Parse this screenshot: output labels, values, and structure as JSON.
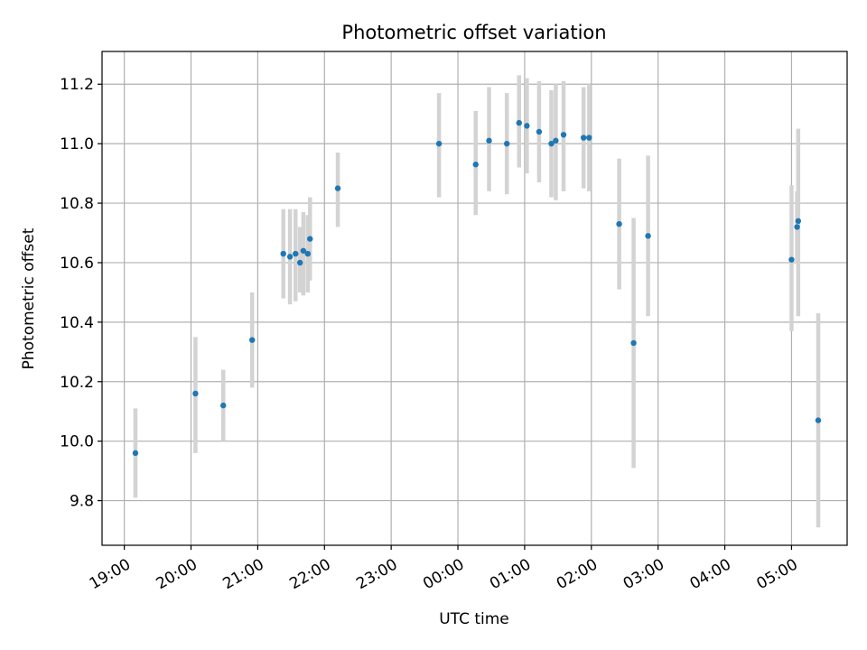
{
  "chart_data": {
    "type": "scatter",
    "title": "Photometric offset variation",
    "xlabel": "UTC time",
    "ylabel": "Photometric offset",
    "x_axis": {
      "kind": "time",
      "range": [
        "2000-01-01T18:40",
        "2000-01-02T05:50"
      ],
      "ticks": [
        {
          "t": "2000-01-01T19:00",
          "label": "19:00"
        },
        {
          "t": "2000-01-01T20:00",
          "label": "20:00"
        },
        {
          "t": "2000-01-01T21:00",
          "label": "21:00"
        },
        {
          "t": "2000-01-01T22:00",
          "label": "22:00"
        },
        {
          "t": "2000-01-01T23:00",
          "label": "23:00"
        },
        {
          "t": "2000-01-02T00:00",
          "label": "00:00"
        },
        {
          "t": "2000-01-02T01:00",
          "label": "01:00"
        },
        {
          "t": "2000-01-02T02:00",
          "label": "02:00"
        },
        {
          "t": "2000-01-02T03:00",
          "label": "03:00"
        },
        {
          "t": "2000-01-02T04:00",
          "label": "04:00"
        },
        {
          "t": "2000-01-02T05:00",
          "label": "05:00"
        }
      ]
    },
    "ylim": [
      9.65,
      11.31
    ],
    "yticks": [
      {
        "v": 9.8,
        "label": "9.8"
      },
      {
        "v": 10.0,
        "label": "10.0"
      },
      {
        "v": 10.2,
        "label": "10.2"
      },
      {
        "v": 10.4,
        "label": "10.4"
      },
      {
        "v": 10.6,
        "label": "10.6"
      },
      {
        "v": 10.8,
        "label": "10.8"
      },
      {
        "v": 11.0,
        "label": "11.0"
      },
      {
        "v": 11.2,
        "label": "11.2"
      }
    ],
    "grid": true,
    "marker_color": "#1f77b4",
    "errorbar_color": "#d3d3d3",
    "points": [
      {
        "t": "2000-01-01T19:10",
        "y": 9.96,
        "lo": 9.81,
        "hi": 10.11
      },
      {
        "t": "2000-01-01T20:04",
        "y": 10.16,
        "lo": 9.96,
        "hi": 10.35
      },
      {
        "t": "2000-01-01T20:29",
        "y": 10.12,
        "lo": 10.0,
        "hi": 10.24
      },
      {
        "t": "2000-01-01T20:55",
        "y": 10.34,
        "lo": 10.18,
        "hi": 10.5
      },
      {
        "t": "2000-01-01T21:23",
        "y": 10.63,
        "lo": 10.48,
        "hi": 10.78
      },
      {
        "t": "2000-01-01T21:29",
        "y": 10.62,
        "lo": 10.46,
        "hi": 10.78
      },
      {
        "t": "2000-01-01T21:34",
        "y": 10.63,
        "lo": 10.47,
        "hi": 10.78
      },
      {
        "t": "2000-01-01T21:38",
        "y": 10.6,
        "lo": 10.5,
        "hi": 10.72
      },
      {
        "t": "2000-01-01T21:41",
        "y": 10.64,
        "lo": 10.49,
        "hi": 10.77
      },
      {
        "t": "2000-01-01T21:45",
        "y": 10.63,
        "lo": 10.5,
        "hi": 10.76
      },
      {
        "t": "2000-01-01T21:47",
        "y": 10.68,
        "lo": 10.54,
        "hi": 10.82
      },
      {
        "t": "2000-01-01T22:12",
        "y": 10.85,
        "lo": 10.72,
        "hi": 10.97
      },
      {
        "t": "2000-01-01T23:43",
        "y": 11.0,
        "lo": 10.82,
        "hi": 11.17
      },
      {
        "t": "2000-01-02T00:16",
        "y": 10.93,
        "lo": 10.76,
        "hi": 11.11
      },
      {
        "t": "2000-01-02T00:28",
        "y": 11.01,
        "lo": 10.84,
        "hi": 11.19
      },
      {
        "t": "2000-01-02T00:44",
        "y": 11.0,
        "lo": 10.83,
        "hi": 11.17
      },
      {
        "t": "2000-01-02T00:55",
        "y": 11.07,
        "lo": 10.92,
        "hi": 11.23
      },
      {
        "t": "2000-01-02T01:02",
        "y": 11.06,
        "lo": 10.9,
        "hi": 11.22
      },
      {
        "t": "2000-01-02T01:13",
        "y": 11.04,
        "lo": 10.87,
        "hi": 11.21
      },
      {
        "t": "2000-01-02T01:24",
        "y": 11.0,
        "lo": 10.82,
        "hi": 11.18
      },
      {
        "t": "2000-01-02T01:28",
        "y": 11.01,
        "lo": 10.81,
        "hi": 11.2
      },
      {
        "t": "2000-01-02T01:35",
        "y": 11.03,
        "lo": 10.84,
        "hi": 11.21
      },
      {
        "t": "2000-01-02T01:53",
        "y": 11.02,
        "lo": 10.85,
        "hi": 11.19
      },
      {
        "t": "2000-01-02T01:58",
        "y": 11.02,
        "lo": 10.84,
        "hi": 11.2
      },
      {
        "t": "2000-01-02T02:25",
        "y": 10.73,
        "lo": 10.51,
        "hi": 10.95
      },
      {
        "t": "2000-01-02T02:38",
        "y": 10.33,
        "lo": 9.91,
        "hi": 10.75
      },
      {
        "t": "2000-01-02T02:51",
        "y": 10.69,
        "lo": 10.42,
        "hi": 10.96
      },
      {
        "t": "2000-01-02T05:00",
        "y": 10.61,
        "lo": 10.37,
        "hi": 10.86
      },
      {
        "t": "2000-01-02T05:05",
        "y": 10.72,
        "lo": 10.6,
        "hi": 10.84
      },
      {
        "t": "2000-01-02T05:06",
        "y": 10.74,
        "lo": 10.42,
        "hi": 11.05
      },
      {
        "t": "2000-01-02T05:24",
        "y": 10.07,
        "lo": 9.71,
        "hi": 10.43
      }
    ]
  }
}
